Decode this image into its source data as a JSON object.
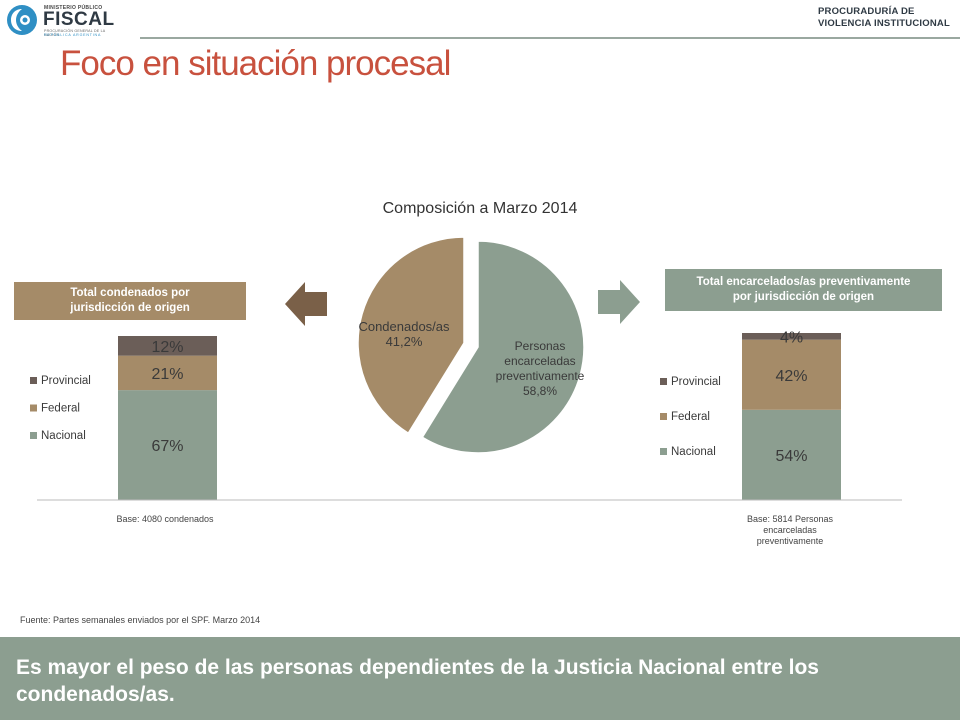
{
  "header": {
    "logo_small": "MINISTERIO PÚBLICO",
    "logo_big": "FISCAL",
    "logo_sub": "PROCURACIÓN GENERAL DE LA NACIÓN",
    "logo_sub2": "REPÚBLICA ARGENTINA",
    "right_line1": "PROCURADURÍA DE",
    "right_line2": "VIOLENCIA INSTITUCIONAL"
  },
  "title": "Foco en situación procesal",
  "colors": {
    "title": "#c8513e",
    "nacional": "#8c9e90",
    "federal": "#a58b68",
    "provincial": "#6b5e58",
    "footer": "#8c9e90"
  },
  "left_box": {
    "line1": "Total condenados por",
    "line2": "jurisdicción de origen"
  },
  "right_box": {
    "line1": "Total encarcelados/as preventivamente",
    "line2": "por jurisdicción de origen"
  },
  "chart_data": [
    {
      "type": "pie",
      "title": "Composición a Marzo 2014",
      "slices": [
        {
          "label_lines": [
            "Personas",
            "encarceladas",
            "preventivamente",
            "58,8%"
          ],
          "value": 58.8,
          "color": "#8c9e90"
        },
        {
          "label_lines": [
            "Condenados/as",
            "41,2%"
          ],
          "value": 41.2,
          "color": "#a58b68"
        }
      ]
    },
    {
      "type": "bar",
      "stacked": true,
      "percent": true,
      "series": [
        {
          "name": "Nacional",
          "value": 67,
          "label": "67%",
          "color": "#8c9e90"
        },
        {
          "name": "Federal",
          "value": 21,
          "label": "21%",
          "color": "#a58b68"
        },
        {
          "name": "Provincial",
          "value": 12,
          "label": "12%",
          "color": "#6b5e58"
        }
      ],
      "legend": "left",
      "base": "Base: 4080 condenados"
    },
    {
      "type": "bar",
      "stacked": true,
      "percent": true,
      "series": [
        {
          "name": "Nacional",
          "value": 54,
          "label": "54%",
          "color": "#8c9e90"
        },
        {
          "name": "Federal",
          "value": 42,
          "label": "42%",
          "color": "#a58b68"
        },
        {
          "name": "Provincial",
          "value": 4,
          "label": "4%",
          "color": "#6b5e58"
        }
      ],
      "legend": "left",
      "base_lines": [
        "Base: 5814 Personas",
        "encarceladas",
        "preventivamente"
      ]
    }
  ],
  "source": "Fuente: Partes semanales enviados por el SPF. Marzo 2014",
  "footer": {
    "text": "Es mayor el peso de las personas dependientes de la Justicia Nacional entre los condenados/as."
  }
}
